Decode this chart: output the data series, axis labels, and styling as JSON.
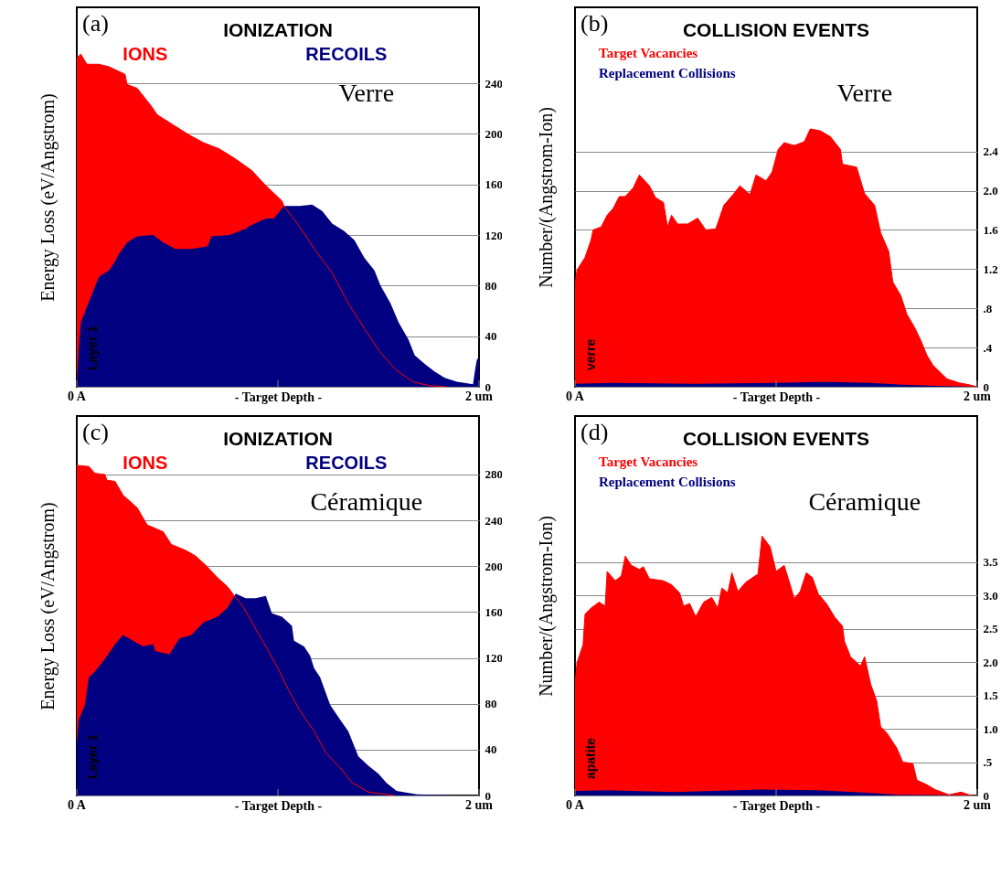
{
  "chart_data": [
    {
      "type": "area",
      "title": "IONIZATION",
      "xlabel": "- Target Depth -",
      "ylabel": "Energy Loss (eV/Angstrom)",
      "annotations": [
        "(a)",
        "Verre",
        "Layer 1"
      ],
      "legend": "top",
      "grid": "y",
      "xlim": [
        0,
        2
      ],
      "xticks": [
        {
          "value": 0,
          "label": "0 A"
        },
        {
          "value": 1,
          "label": null
        },
        {
          "value": 2,
          "label": "2 um"
        }
      ],
      "ylim": [
        0,
        300
      ],
      "yticks": [
        0,
        40,
        80,
        120,
        160,
        200,
        240
      ],
      "series": [
        {
          "name": "IONS",
          "color": "#ff0000",
          "x": [
            0,
            0.02,
            0.05,
            0.11,
            0.16,
            0.24,
            0.25,
            0.3,
            0.37,
            0.4,
            0.48,
            0.56,
            0.63,
            0.71,
            0.79,
            0.87,
            0.94,
            1.02,
            1.03,
            1.11,
            1.19,
            1.27,
            1.35,
            1.43,
            1.51,
            1.59,
            1.67,
            1.75,
            1.84
          ],
          "values": [
            260,
            263,
            255,
            255,
            253,
            247,
            239,
            236,
            222,
            215,
            207,
            199,
            193,
            188,
            180,
            171,
            159,
            147,
            143,
            126,
            107,
            90,
            66,
            46,
            27,
            13,
            4,
            1,
            0
          ]
        },
        {
          "name": "RECOILS",
          "color": "#000080",
          "x": [
            0,
            0.01,
            0.02,
            0.05,
            0.08,
            0.11,
            0.16,
            0.19,
            0.21,
            0.25,
            0.3,
            0.38,
            0.43,
            0.49,
            0.57,
            0.65,
            0.67,
            0.76,
            0.84,
            0.87,
            0.94,
            0.98,
            1.03,
            1.11,
            1.17,
            1.22,
            1.27,
            1.33,
            1.38,
            1.43,
            1.48,
            1.51,
            1.56,
            1.6,
            1.65,
            1.68,
            1.73,
            1.78,
            1.83,
            1.89,
            1.97,
            1.98,
            1.99,
            2.0
          ],
          "values": [
            3,
            30,
            51,
            63,
            75,
            87,
            92,
            99,
            105,
            114,
            119,
            120,
            114,
            109,
            109,
            111,
            119,
            120,
            125,
            128,
            133,
            133,
            143,
            143,
            144,
            139,
            129,
            123,
            116,
            102,
            92,
            80,
            66,
            51,
            37,
            25,
            18,
            12,
            7,
            4,
            2,
            13,
            22,
            22
          ]
        }
      ]
    },
    {
      "type": "area",
      "title": "COLLISION EVENTS",
      "xlabel": "- Target Depth -",
      "ylabel": "Number/(Angstrom-Ion)",
      "annotations": [
        "(b)",
        "Verre",
        "verre"
      ],
      "legend": "top left",
      "grid": "y",
      "xlim": [
        0,
        2
      ],
      "xticks": [
        {
          "value": 0,
          "label": "0 A"
        },
        {
          "value": 1,
          "label": null
        },
        {
          "value": 2,
          "label": "2 um"
        }
      ],
      "ylim": [
        0,
        3.87
      ],
      "yticks": [
        0,
        {
          "value": 0.4,
          "label": ".4"
        },
        {
          "value": 0.8,
          "label": ".8"
        },
        1.2,
        1.6,
        {
          "value": 2,
          "label": "2.0"
        },
        2.4
      ],
      "series": [
        {
          "name": "Target Vacancies",
          "color": "#ff0000",
          "x": [
            0,
            0.01,
            0.05,
            0.08,
            0.09,
            0.13,
            0.16,
            0.19,
            0.22,
            0.25,
            0.29,
            0.32,
            0.37,
            0.4,
            0.44,
            0.46,
            0.48,
            0.51,
            0.56,
            0.61,
            0.65,
            0.7,
            0.74,
            0.79,
            0.82,
            0.87,
            0.9,
            0.95,
            0.98,
            1.01,
            1.04,
            1.09,
            1.14,
            1.17,
            1.22,
            1.27,
            1.32,
            1.33,
            1.4,
            1.44,
            1.49,
            1.52,
            1.56,
            1.58,
            1.62,
            1.65,
            1.69,
            1.72,
            1.75,
            1.78,
            1.85,
            1.91,
            1.96,
            2.0
          ],
          "values": [
            1.04,
            1.19,
            1.32,
            1.5,
            1.6,
            1.63,
            1.75,
            1.82,
            1.94,
            1.94,
            2.03,
            2.16,
            2.05,
            1.93,
            1.88,
            1.63,
            1.75,
            1.66,
            1.66,
            1.72,
            1.6,
            1.61,
            1.85,
            1.97,
            2.05,
            1.96,
            2.16,
            2.1,
            2.19,
            2.42,
            2.49,
            2.46,
            2.5,
            2.63,
            2.61,
            2.55,
            2.42,
            2.27,
            2.24,
            1.97,
            1.85,
            1.57,
            1.38,
            1.07,
            0.93,
            0.74,
            0.6,
            0.47,
            0.32,
            0.22,
            0.08,
            0.04,
            0.02,
            0
          ]
        },
        {
          "name": "Replacement Collisions",
          "color": "#000080",
          "x": [
            0,
            0.19,
            0.59,
            0.99,
            1.2,
            1.28,
            1.47,
            1.63,
            1.8,
            2.0
          ],
          "values": [
            0.03,
            0.04,
            0.03,
            0.04,
            0.05,
            0.05,
            0.04,
            0.02,
            0.01,
            0
          ]
        }
      ]
    },
    {
      "type": "area",
      "title": "IONIZATION",
      "xlabel": "- Target Depth -",
      "ylabel": "Energy Loss (eV/Angstrom)",
      "annotations": [
        "(c)",
        "Céramique",
        "Layer 1"
      ],
      "legend": "top",
      "grid": "y",
      "xlim": [
        0,
        2
      ],
      "xticks": [
        {
          "value": 0,
          "label": "0 A"
        },
        {
          "value": 1,
          "label": null
        },
        {
          "value": 2,
          "label": "2 um"
        }
      ],
      "ylim": [
        0,
        331
      ],
      "yticks": [
        0,
        40,
        80,
        120,
        160,
        200,
        240,
        280
      ],
      "series": [
        {
          "name": "IONS",
          "color": "#ff0000",
          "x": [
            0,
            0.06,
            0.09,
            0.14,
            0.15,
            0.19,
            0.23,
            0.3,
            0.35,
            0.43,
            0.47,
            0.54,
            0.59,
            0.64,
            0.7,
            0.75,
            0.78,
            0.83,
            0.89,
            0.95,
            1.0,
            1.05,
            1.11,
            1.18,
            1.24,
            1.31,
            1.37,
            1.45,
            1.58
          ],
          "values": [
            288,
            287,
            281,
            280,
            275,
            274,
            262,
            251,
            236,
            230,
            219,
            214,
            209,
            201,
            190,
            182,
            175,
            164,
            145,
            127,
            111,
            93,
            74,
            56,
            37,
            24,
            11,
            3,
            0
          ]
        },
        {
          "name": "RECOILS",
          "color": "#000080",
          "x": [
            0,
            0.01,
            0.04,
            0.06,
            0.09,
            0.14,
            0.19,
            0.23,
            0.28,
            0.33,
            0.38,
            0.39,
            0.46,
            0.51,
            0.57,
            0.63,
            0.7,
            0.75,
            0.79,
            0.84,
            0.89,
            0.94,
            0.97,
            1.02,
            1.07,
            1.08,
            1.13,
            1.16,
            1.18,
            1.21,
            1.26,
            1.31,
            1.35,
            1.4,
            1.45,
            1.5,
            1.54,
            1.59,
            1.69,
            1.9,
            2.0
          ],
          "values": [
            45,
            66,
            79,
            103,
            108,
            119,
            132,
            140,
            135,
            130,
            132,
            126,
            123,
            137,
            140,
            151,
            156,
            164,
            176,
            172,
            172,
            174,
            159,
            156,
            148,
            135,
            130,
            122,
            111,
            103,
            79,
            66,
            56,
            34,
            26,
            19,
            11,
            4,
            1,
            0,
            0
          ]
        }
      ]
    },
    {
      "type": "area",
      "title": "COLLISION EVENTS",
      "xlabel": "- Target Depth -",
      "ylabel": "Number/(Angstrom-Ion)",
      "annotations": [
        "(d)",
        "Céramique",
        "apatite"
      ],
      "legend": "top left",
      "grid": "y",
      "xlim": [
        0,
        2
      ],
      "xticks": [
        {
          "value": 0,
          "label": "0 A"
        },
        {
          "value": 1,
          "label": null
        },
        {
          "value": 2,
          "label": "2 um"
        }
      ],
      "ylim": [
        0,
        5.69
      ],
      "yticks": [
        0,
        {
          "value": 0.5,
          "label": ".5"
        },
        {
          "value": 1,
          "label": "1.0"
        },
        1.5,
        {
          "value": 2,
          "label": "2.0"
        },
        2.5,
        {
          "value": 3,
          "label": "3.0"
        },
        3.5
      ],
      "series": [
        {
          "name": "Target Vacancies",
          "color": "#ff0000",
          "x": [
            0,
            0.01,
            0.04,
            0.05,
            0.08,
            0.12,
            0.15,
            0.16,
            0.2,
            0.23,
            0.25,
            0.28,
            0.32,
            0.34,
            0.37,
            0.44,
            0.48,
            0.52,
            0.54,
            0.57,
            0.6,
            0.64,
            0.68,
            0.71,
            0.73,
            0.76,
            0.78,
            0.81,
            0.85,
            0.91,
            0.93,
            0.97,
            1.0,
            1.04,
            1.07,
            1.09,
            1.12,
            1.15,
            1.18,
            1.21,
            1.25,
            1.29,
            1.33,
            1.34,
            1.37,
            1.42,
            1.44,
            1.47,
            1.5,
            1.52,
            1.55,
            1.6,
            1.63,
            1.68,
            1.7,
            1.75,
            1.79,
            1.86,
            1.92,
            1.97,
            2.0
          ],
          "values": [
            1.67,
            1.99,
            2.26,
            2.72,
            2.81,
            2.9,
            2.84,
            3.36,
            3.22,
            3.29,
            3.59,
            3.45,
            3.39,
            3.43,
            3.25,
            3.22,
            3.16,
            3.04,
            2.84,
            2.88,
            2.68,
            2.9,
            2.97,
            2.81,
            3.11,
            3.04,
            3.34,
            3.06,
            3.2,
            3.32,
            3.89,
            3.73,
            3.36,
            3.45,
            3.16,
            2.95,
            3.06,
            3.34,
            3.27,
            3.02,
            2.88,
            2.68,
            2.54,
            2.31,
            2.08,
            1.94,
            2.08,
            1.67,
            1.42,
            1.03,
            0.94,
            0.71,
            0.5,
            0.48,
            0.23,
            0.16,
            0.09,
            0.01,
            0.05,
            0,
            0
          ]
        },
        {
          "name": "Replacement Collisions",
          "color": "#000080",
          "x": [
            0,
            0.16,
            0.49,
            0.92,
            1.21,
            1.45,
            1.61,
            2.0
          ],
          "values": [
            0.07,
            0.08,
            0.05,
            0.09,
            0.08,
            0.04,
            0.01,
            0
          ]
        }
      ]
    }
  ]
}
